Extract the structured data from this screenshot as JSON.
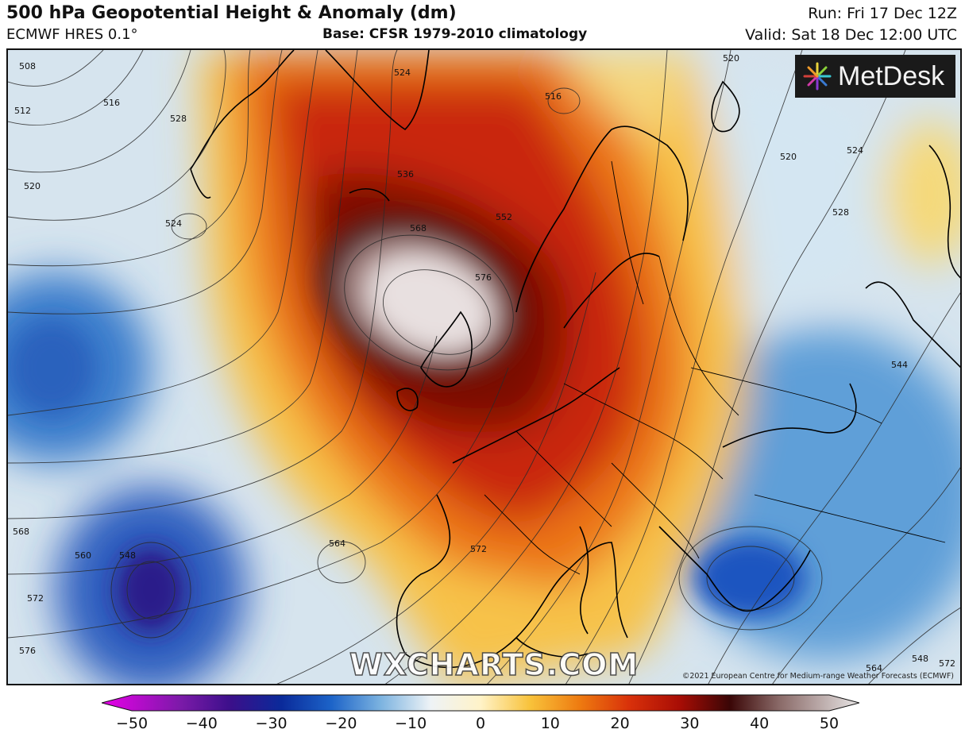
{
  "header": {
    "title": "500 hPa Geopotential Height & Anomaly (dm)",
    "model": "ECMWF HRES 0.1°",
    "base": "Base: CFSR 1979-2010 climatology",
    "run": "Run: Fri 17 Dec 12Z",
    "valid": "Valid: Sat 18 Dec 12:00 UTC"
  },
  "logo": {
    "text": "MetDesk",
    "icon": "metdesk-pinwheel-icon"
  },
  "watermark": "WXCHARTS.COM",
  "copyright": "©2021 European Centre for Medium-range Weather Forecasts (ECMWF)",
  "colorbar": {
    "ticks": [
      "−50",
      "−40",
      "−30",
      "−20",
      "−10",
      "0",
      "10",
      "20",
      "30",
      "40",
      "50"
    ],
    "min": -50,
    "max": 50,
    "colors": [
      "#e800e8",
      "#7a1aa8",
      "#3a0f8a",
      "#0a2a9a",
      "#1c63c8",
      "#7cb3e0",
      "#eef3f6",
      "#fff3c8",
      "#f8c23a",
      "#ee7a10",
      "#d8300a",
      "#a80d05",
      "#3a0606",
      "#8a6a68",
      "#e8e6e6"
    ]
  },
  "contour_labels": [
    "508",
    "512",
    "516",
    "520",
    "524",
    "528",
    "516",
    "520",
    "524",
    "528",
    "536",
    "552",
    "568",
    "576",
    "544",
    "564",
    "572",
    "548",
    "560",
    "568",
    "572",
    "576",
    "564",
    "548",
    "572",
    "520",
    "524"
  ],
  "colors": {
    "frame": "#111111",
    "ridge_core": "#f2eeee",
    "ridge_dark": "#3a0606",
    "trough": "#2a0f8a",
    "neutral": "#eef3f6"
  }
}
